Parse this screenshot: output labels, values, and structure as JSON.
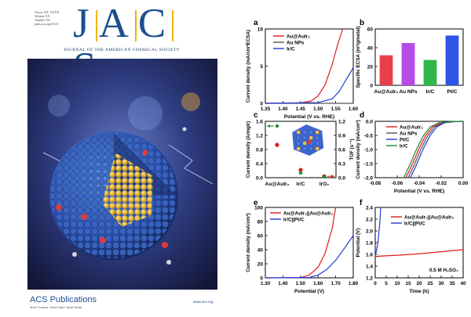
{
  "cover": {
    "meta_lines": [
      "Xxxxx XX, XXXX",
      "Volume XX",
      "Number XX",
      "pubs.acs.org/JACS"
    ],
    "masthead": "JACS",
    "journal_name": "JOURNAL OF THE AMERICAN CHEMICAL SOCIETY",
    "publisher_logo": "ACS Publications",
    "publisher_tagline": "Most Trusted. Most Cited. Most Read.",
    "url": "www.acs.org"
  },
  "chart_data": [
    {
      "panel": "a",
      "type": "line",
      "xlabel": "Potential (V vs. RHE)",
      "ylabel": "Current density (mA/cm²ECSA)",
      "xlim": [
        1.35,
        1.6
      ],
      "ylim": [
        0,
        10
      ],
      "xticks": [
        "1.35",
        "1.40",
        "1.45",
        "1.50",
        "1.55",
        "1.60"
      ],
      "yticks": [
        "0",
        "5",
        "10"
      ],
      "legend_position": "top-center",
      "series": [
        {
          "name": "Au@AuIr₂",
          "color": "#e31a1c",
          "x": [
            1.35,
            1.45,
            1.48,
            1.5,
            1.52,
            1.54,
            1.555,
            1.57
          ],
          "y": [
            0,
            0.05,
            0.3,
            1.0,
            2.5,
            5.2,
            7.8,
            10
          ]
        },
        {
          "name": "Au NPs",
          "color": "#555555",
          "x": [
            1.35,
            1.6
          ],
          "y": [
            0,
            0
          ]
        },
        {
          "name": "Ir/C",
          "color": "#1f3bd6",
          "x": [
            1.35,
            1.5,
            1.54,
            1.56,
            1.58,
            1.6
          ],
          "y": [
            0,
            0.1,
            0.6,
            1.6,
            3.2,
            4.8
          ]
        }
      ]
    },
    {
      "panel": "b",
      "type": "bar",
      "ylabel": "Specific ECSA (m²/gmetal)",
      "ylim": [
        0,
        60
      ],
      "yticks": [
        "0",
        "20",
        "40",
        "60"
      ],
      "categories": [
        "Au@AuIr₂",
        "Au NPs",
        "Ir/C",
        "Pt/C"
      ],
      "values": [
        32,
        45,
        27,
        53
      ],
      "colors": [
        "#e8404a",
        "#b84ae8",
        "#2eb84a",
        "#2f55e6"
      ]
    },
    {
      "panel": "c",
      "type": "scatter",
      "ylabel": "Current density (A/mgIr)",
      "y2label": "TOF (s⁻¹)",
      "categories": [
        "Au@AuIr₂",
        "Ir/C",
        "IrO₂"
      ],
      "ylim": [
        0,
        1.6
      ],
      "yticks": [
        "0.0",
        "0.4",
        "0.8",
        "1.2",
        "1.6"
      ],
      "y2lim": [
        0,
        1.2
      ],
      "y2ticks": [
        "0.0",
        "0.3",
        "0.6",
        "0.9",
        "1.2"
      ],
      "series": [
        {
          "name": "Current density",
          "color": "#e31a1c",
          "marker": "circle",
          "values": [
            0.93,
            0.22,
            0.04
          ]
        },
        {
          "name": "TOF",
          "color": "#1e8a2f",
          "marker": "diamond",
          "values": [
            1.1,
            0.1,
            0.02
          ]
        }
      ]
    },
    {
      "panel": "d",
      "type": "line",
      "xlabel": "Potential (V vs. RHE)",
      "ylabel": "Current density (mA/cm²)",
      "xlim": [
        -0.08,
        0.0
      ],
      "ylim": [
        -2.0,
        0.0
      ],
      "xticks": [
        "-0.08",
        "-0.06",
        "-0.04",
        "-0.02",
        "0.00"
      ],
      "yticks": [
        "-2.0",
        "-1.5",
        "-1.0",
        "-0.5",
        "0.0"
      ],
      "legend_position": "top-left",
      "series": [
        {
          "name": "Au@AuIr₂",
          "color": "#e31a1c",
          "x": [
            -0.052,
            -0.046,
            -0.04,
            -0.034,
            -0.028,
            -0.02,
            -0.01,
            0.0
          ],
          "y": [
            -2.0,
            -1.5,
            -0.95,
            -0.5,
            -0.2,
            -0.05,
            -0.01,
            0
          ]
        },
        {
          "name": "Au NPs",
          "color": "#555555",
          "x": [
            -0.05,
            -0.044,
            -0.038,
            -0.032,
            -0.026,
            -0.018,
            -0.008,
            0.0
          ],
          "y": [
            -2.0,
            -1.5,
            -0.95,
            -0.5,
            -0.2,
            -0.05,
            -0.01,
            0
          ]
        },
        {
          "name": "Pt/C",
          "color": "#1f3bd6",
          "x": [
            -0.048,
            -0.042,
            -0.036,
            -0.03,
            -0.024,
            -0.017,
            -0.008,
            0.0
          ],
          "y": [
            -2.0,
            -1.5,
            -0.95,
            -0.5,
            -0.2,
            -0.05,
            -0.01,
            0
          ]
        },
        {
          "name": "Ir/C",
          "color": "#1e8a2f",
          "x": [
            -0.054,
            -0.048,
            -0.042,
            -0.036,
            -0.03,
            -0.022,
            -0.012,
            0.0
          ],
          "y": [
            -2.0,
            -1.5,
            -0.95,
            -0.5,
            -0.2,
            -0.05,
            -0.01,
            0
          ]
        }
      ]
    },
    {
      "panel": "e",
      "type": "line",
      "xlabel": "Potential (V)",
      "ylabel": "Current density (mA/cm²)",
      "xlim": [
        1.3,
        1.8
      ],
      "ylim": [
        0,
        100
      ],
      "xticks": [
        "1.30",
        "1.40",
        "1.50",
        "1.60",
        "1.70",
        "1.80"
      ],
      "yticks": [
        "0",
        "20",
        "40",
        "60",
        "80",
        "100"
      ],
      "legend_position": "top-left",
      "series": [
        {
          "name": "Au@AuIr₂||Au@AuIr₂",
          "color": "#e31a1c",
          "x": [
            1.3,
            1.5,
            1.55,
            1.6,
            1.64,
            1.68,
            1.7
          ],
          "y": [
            0,
            0.5,
            4,
            15,
            35,
            70,
            100
          ]
        },
        {
          "name": "Ir/C||Pt/C",
          "color": "#1f3bd6",
          "x": [
            1.3,
            1.55,
            1.6,
            1.65,
            1.7,
            1.75,
            1.8
          ],
          "y": [
            0,
            0.5,
            4,
            12,
            25,
            42,
            60
          ]
        }
      ]
    },
    {
      "panel": "f",
      "type": "line",
      "xlabel": "Time (h)",
      "ylabel": "Potential (V)",
      "xlim": [
        0,
        40
      ],
      "ylim": [
        1.2,
        2.4
      ],
      "xticks": [
        "0",
        "5",
        "10",
        "15",
        "20",
        "25",
        "30",
        "35",
        "40"
      ],
      "yticks": [
        "1.2",
        "1.4",
        "1.6",
        "1.8",
        "2.0",
        "2.2",
        "2.4"
      ],
      "legend_position": "top-right",
      "annotation": "0.5 M H₂SO₄",
      "series": [
        {
          "name": "Au@AuIr₂||Au@AuIr₂",
          "color": "#e31a1c",
          "x": [
            0,
            2,
            10,
            20,
            30,
            40
          ],
          "y": [
            1.56,
            1.57,
            1.585,
            1.61,
            1.645,
            1.68
          ]
        },
        {
          "name": "Ir/C||Pt/C",
          "color": "#1f3bd6",
          "x": [
            0,
            0.5,
            1.2,
            2.0,
            2.5
          ],
          "y": [
            1.6,
            1.65,
            1.8,
            2.1,
            2.4
          ]
        }
      ]
    }
  ]
}
